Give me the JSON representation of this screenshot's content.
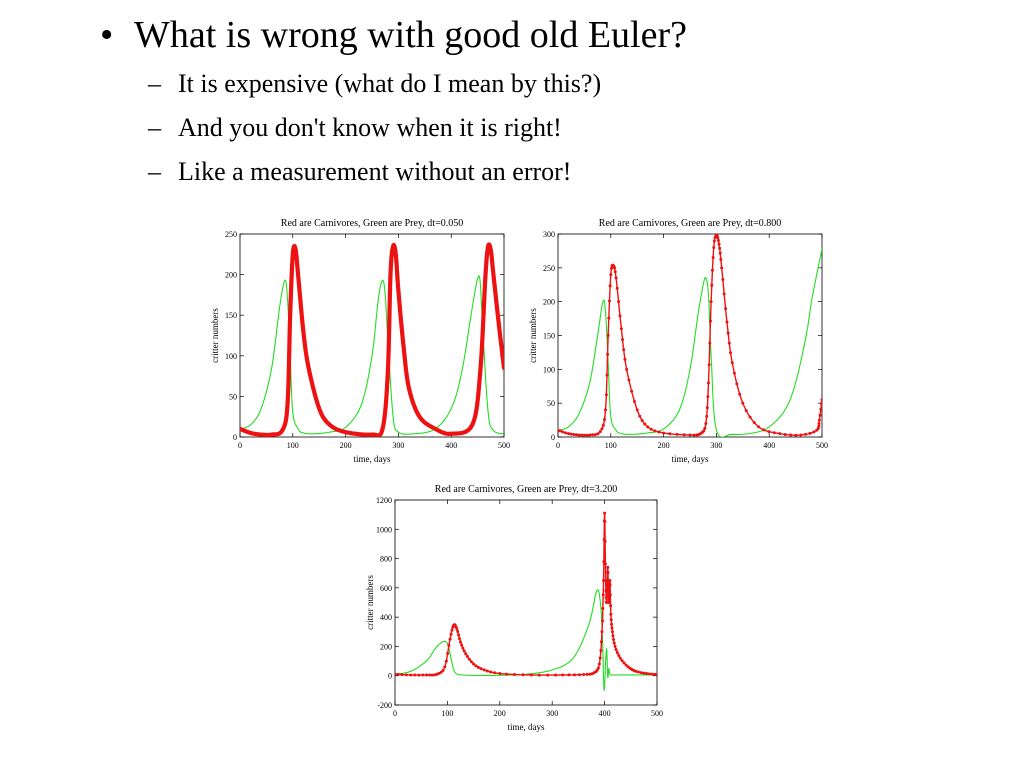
{
  "slide": {
    "main_bullet": {
      "marker": "•",
      "text": "What is wrong with good old Euler?"
    },
    "sub_bullets": [
      {
        "marker": "–",
        "text": "It is expensive (what do I mean by this?)"
      },
      {
        "marker": "–",
        "text": "And you don't know when it is right!"
      },
      {
        "marker": "–",
        "text": "Like a measurement without an error!"
      }
    ]
  },
  "colors": {
    "prey": "#22dd22",
    "carnivores": "#ee1111"
  },
  "chart_data": [
    {
      "type": "line",
      "title": "Red are Carnivores, Green are Prey, dt=0.050",
      "xlabel": "time, days",
      "ylabel": "critter numbers",
      "xlim": [
        0,
        500
      ],
      "ylim": [
        0,
        250
      ],
      "xticks": [
        "0",
        "100",
        "200",
        "300",
        "400",
        "500"
      ],
      "yticks": [
        "0",
        "50",
        "100",
        "150",
        "200",
        "250"
      ],
      "markers": false,
      "series": [
        {
          "color": "#22dd22",
          "x": [
            0,
            20,
            40,
            60,
            75,
            85,
            90,
            95,
            100,
            110,
            120,
            140,
            170,
            200,
            230,
            250,
            262,
            270,
            275,
            280,
            290,
            300,
            330,
            370,
            400,
            420,
            440,
            450,
            455,
            460,
            470,
            480,
            500
          ],
          "y": [
            10,
            15,
            35,
            85,
            160,
            193,
            170,
            100,
            30,
            10,
            5,
            4,
            6,
            12,
            40,
            100,
            170,
            193,
            175,
            120,
            25,
            6,
            4,
            10,
            35,
            80,
            160,
            195,
            190,
            130,
            30,
            8,
            4
          ]
        },
        {
          "color": "#ee1111",
          "x": [
            0,
            20,
            40,
            60,
            80,
            90,
            95,
            100,
            105,
            110,
            120,
            130,
            150,
            170,
            200,
            250,
            270,
            280,
            285,
            290,
            295,
            300,
            310,
            320,
            340,
            370,
            400,
            440,
            455,
            465,
            470,
            475,
            480,
            490,
            500
          ],
          "y": [
            10,
            5,
            3,
            3,
            8,
            40,
            150,
            225,
            232,
            200,
            130,
            85,
            35,
            15,
            6,
            3,
            10,
            80,
            200,
            235,
            225,
            180,
            110,
            60,
            25,
            10,
            4,
            15,
            80,
            200,
            235,
            230,
            200,
            140,
            85
          ]
        }
      ]
    },
    {
      "type": "line",
      "title": "Red are Carnivores, Green are Prey, dt=0.800",
      "xlabel": "time, days",
      "ylabel": "critter numbers",
      "xlim": [
        0,
        500
      ],
      "ylim": [
        0,
        300
      ],
      "xticks": [
        "0",
        "100",
        "200",
        "300",
        "400",
        "500"
      ],
      "yticks": [
        "0",
        "50",
        "100",
        "150",
        "200",
        "250",
        "300"
      ],
      "markers": true,
      "series": [
        {
          "color": "#22dd22",
          "x": [
            0,
            20,
            40,
            60,
            75,
            85,
            90,
            95,
            100,
            110,
            120,
            140,
            170,
            200,
            230,
            250,
            265,
            275,
            280,
            285,
            290,
            300,
            330,
            370,
            400,
            430,
            450,
            470,
            480,
            490,
            500
          ],
          "y": [
            10,
            15,
            35,
            80,
            150,
            200,
            185,
            110,
            30,
            10,
            5,
            4,
            6,
            12,
            40,
            100,
            180,
            225,
            235,
            210,
            120,
            10,
            4,
            6,
            15,
            40,
            80,
            150,
            200,
            240,
            278
          ]
        },
        {
          "color": "#ee1111",
          "x": [
            0,
            20,
            40,
            60,
            80,
            90,
            95,
            100,
            105,
            110,
            120,
            130,
            150,
            170,
            200,
            250,
            270,
            280,
            285,
            290,
            295,
            300,
            305,
            310,
            320,
            330,
            350,
            380,
            420,
            460,
            490,
            495,
            500
          ],
          "y": [
            10,
            5,
            3,
            3,
            8,
            40,
            150,
            240,
            253,
            235,
            160,
            100,
            40,
            15,
            6,
            3,
            5,
            20,
            80,
            200,
            280,
            298,
            285,
            250,
            170,
            110,
            50,
            15,
            5,
            3,
            10,
            25,
            55
          ]
        }
      ]
    },
    {
      "type": "line",
      "title": "Red are Carnivores, Green are Prey, dt=3.200",
      "xlabel": "time, days",
      "ylabel": "critter numbers",
      "xlim": [
        0,
        500
      ],
      "ylim": [
        -200,
        1200
      ],
      "xticks": [
        "0",
        "100",
        "200",
        "300",
        "400",
        "500"
      ],
      "yticks": [
        "-200",
        "0",
        "200",
        "400",
        "600",
        "800",
        "1000",
        "1200"
      ],
      "markers": true,
      "series": [
        {
          "color": "#22dd22",
          "x": [
            0,
            30,
            60,
            80,
            95,
            102,
            108,
            115,
            130,
            160,
            200,
            250,
            300,
            340,
            370,
            385,
            392,
            396,
            399,
            402,
            404,
            406,
            408,
            410,
            415,
            430,
            470,
            500
          ],
          "y": [
            10,
            30,
            100,
            200,
            235,
            200,
            100,
            20,
            5,
            2,
            3,
            10,
            40,
            120,
            350,
            580,
            500,
            250,
            -100,
            100,
            180,
            -10,
            50,
            10,
            5,
            5,
            5,
            5
          ]
        },
        {
          "color": "#ee1111",
          "x": [
            0,
            30,
            60,
            80,
            95,
            105,
            112,
            118,
            125,
            135,
            150,
            170,
            200,
            260,
            320,
            360,
            380,
            390,
            395,
            398,
            400,
            402,
            404,
            406,
            408,
            410,
            412,
            415,
            420,
            430,
            445,
            460,
            480,
            500
          ],
          "y": [
            10,
            5,
            5,
            10,
            60,
            250,
            345,
            320,
            230,
            150,
            80,
            40,
            15,
            5,
            5,
            8,
            20,
            80,
            300,
            650,
            1110,
            650,
            500,
            740,
            500,
            650,
            420,
            300,
            200,
            120,
            60,
            30,
            15,
            8
          ]
        }
      ]
    }
  ]
}
